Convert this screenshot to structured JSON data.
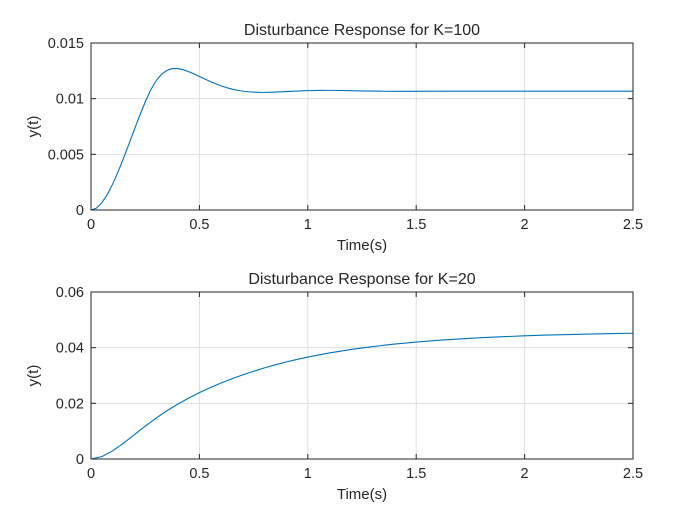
{
  "chart_data": [
    {
      "type": "line",
      "title": "Disturbance Response for K=100",
      "xlabel": "Time(s)",
      "ylabel": "y(t)",
      "xlim": [
        0,
        2.5
      ],
      "ylim": [
        0,
        0.015
      ],
      "xticks": [
        0,
        0.5,
        1,
        1.5,
        2,
        2.5
      ],
      "xtick_labels": [
        "0",
        "0.5",
        "1",
        "1.5",
        "2",
        "2.5"
      ],
      "yticks": [
        0,
        0.005,
        0.01,
        0.015
      ],
      "ytick_labels": [
        "0",
        "0.005",
        "0.01",
        "0.015"
      ],
      "grid": true,
      "series": [
        {
          "color": "#0072BD",
          "x": [
            0,
            0.025,
            0.05,
            0.075,
            0.1,
            0.125,
            0.15,
            0.175,
            0.2,
            0.225,
            0.25,
            0.275,
            0.3,
            0.325,
            0.35,
            0.375,
            0.4,
            0.425,
            0.45,
            0.475,
            0.5,
            0.525,
            0.55,
            0.575,
            0.6,
            0.625,
            0.65,
            0.675,
            0.7,
            0.725,
            0.75,
            0.775,
            0.8,
            0.825,
            0.85,
            0.875,
            0.9,
            0.925,
            0.95,
            0.975,
            1,
            1.05,
            1.1,
            1.15,
            1.2,
            1.25,
            1.3,
            1.35,
            1.4,
            1.45,
            1.5,
            1.6,
            1.7,
            1.8,
            1.9,
            2,
            2.1,
            2.2,
            2.3,
            2.4,
            2.5
          ],
          "y": [
            0,
            0.000171,
            0.000649,
            0.001385,
            0.002329,
            0.003432,
            0.004647,
            0.005927,
            0.007226,
            0.0085,
            0.0097,
            0.010765,
            0.011606,
            0.012193,
            0.012545,
            0.012701,
            0.012707,
            0.012604,
            0.012433,
            0.012222,
            0.011995,
            0.011765,
            0.011544,
            0.011337,
            0.011152,
            0.010993,
            0.010862,
            0.010757,
            0.010678,
            0.010622,
            0.010587,
            0.010569,
            0.010566,
            0.010574,
            0.01059,
            0.010612,
            0.010637,
            0.010662,
            0.010685,
            0.010706,
            0.010723,
            0.010743,
            0.010745,
            0.010733,
            0.010715,
            0.010696,
            0.010679,
            0.010667,
            0.010661,
            0.01066,
            0.010663,
            0.010671,
            0.010675,
            0.010673,
            0.01067,
            0.010668,
            0.010668,
            0.010668,
            0.010668,
            0.010668,
            0.010668
          ]
        }
      ]
    },
    {
      "type": "line",
      "title": "Disturbance Response for K=20",
      "xlabel": "Time(s)",
      "ylabel": "y(t)",
      "xlim": [
        0,
        2.5
      ],
      "ylim": [
        0,
        0.06
      ],
      "xticks": [
        0,
        0.5,
        1,
        1.5,
        2,
        2.5
      ],
      "xtick_labels": [
        "0",
        "0.5",
        "1",
        "1.5",
        "2",
        "2.5"
      ],
      "yticks": [
        0,
        0.02,
        0.04,
        0.06
      ],
      "ytick_labels": [
        "0",
        "0.02",
        "0.04",
        "0.06"
      ],
      "grid": true,
      "series": [
        {
          "color": "#0072BD",
          "x": [
            0,
            0.05,
            0.1,
            0.15,
            0.2,
            0.25,
            0.3,
            0.35,
            0.4,
            0.45,
            0.5,
            0.55,
            0.6,
            0.65,
            0.7,
            0.75,
            0.8,
            0.85,
            0.9,
            0.95,
            1,
            1.1,
            1.2,
            1.3,
            1.4,
            1.5,
            1.6,
            1.7,
            1.8,
            1.9,
            2,
            2.1,
            2.2,
            2.3,
            2.4,
            2.5
          ],
          "y": [
            0,
            0.00085,
            0.00294,
            0.00569,
            0.00872,
            0.01177,
            0.01468,
            0.01734,
            0.01972,
            0.02187,
            0.02383,
            0.02563,
            0.02729,
            0.02882,
            0.03023,
            0.03153,
            0.03273,
            0.03383,
            0.03484,
            0.03577,
            0.03662,
            0.03811,
            0.03936,
            0.04041,
            0.04129,
            0.04202,
            0.04264,
            0.04315,
            0.04358,
            0.04394,
            0.04425,
            0.04451,
            0.04472,
            0.0449,
            0.04505,
            0.04518
          ]
        }
      ]
    }
  ]
}
